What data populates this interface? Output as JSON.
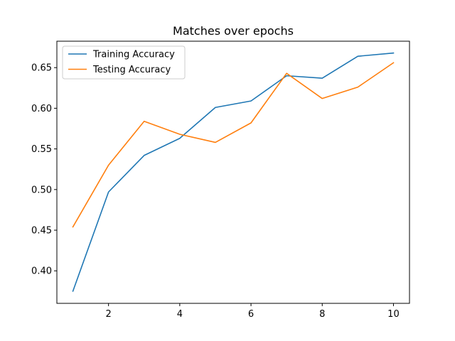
{
  "chart_data": {
    "type": "line",
    "title": "Matches over epochs",
    "xlabel": "",
    "ylabel": "",
    "x": [
      1,
      2,
      3,
      4,
      5,
      6,
      7,
      8,
      9,
      10
    ],
    "xlim": [
      0.55,
      10.45
    ],
    "ylim": [
      0.36,
      0.6825
    ],
    "xticks": [
      2,
      4,
      6,
      8,
      10
    ],
    "yticks": [
      0.4,
      0.45,
      0.5,
      0.55,
      0.6,
      0.65
    ],
    "ytick_labels": [
      "0.40",
      "0.45",
      "0.50",
      "0.55",
      "0.60",
      "0.65"
    ],
    "grid": false,
    "legend_position": "upper-left",
    "series": [
      {
        "name": "Training Accuracy",
        "color": "#1f77b4",
        "values": [
          0.375,
          0.497,
          0.542,
          0.563,
          0.601,
          0.609,
          0.64,
          0.637,
          0.664,
          0.668
        ]
      },
      {
        "name": "Testing Accuracy",
        "color": "#ff7f0e",
        "values": [
          0.454,
          0.53,
          0.584,
          0.568,
          0.558,
          0.582,
          0.643,
          0.612,
          0.626,
          0.656
        ]
      }
    ]
  }
}
